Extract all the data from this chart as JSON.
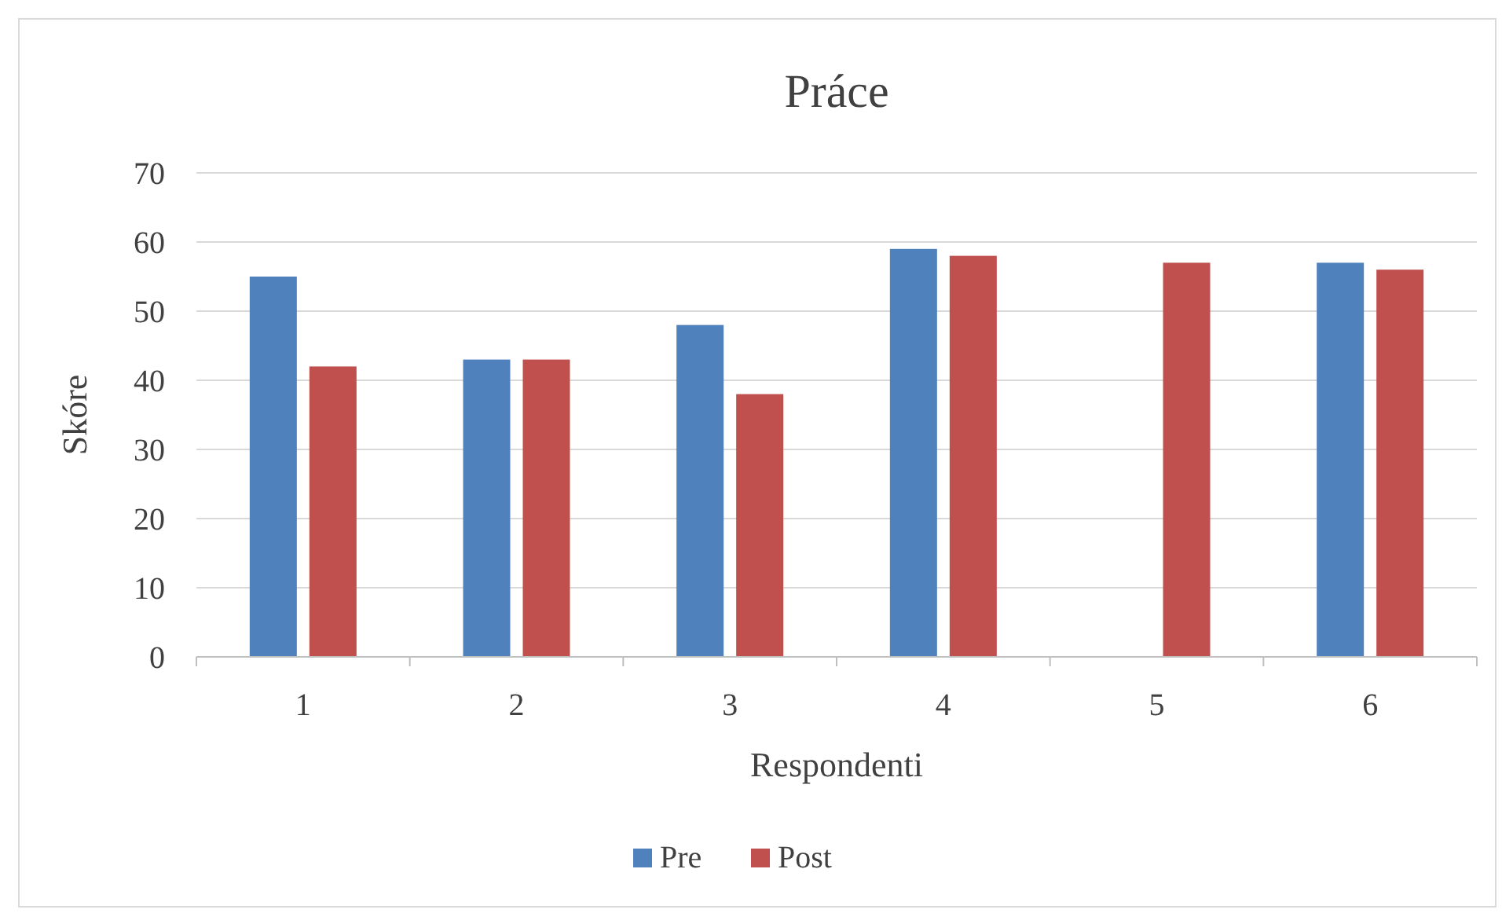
{
  "chart_data": {
    "type": "bar",
    "title": "Práce",
    "xlabel": "Respondenti",
    "ylabel": "Skóre",
    "categories": [
      "1",
      "2",
      "3",
      "4",
      "5",
      "6"
    ],
    "series": [
      {
        "name": "Pre",
        "color": "#4f81bd",
        "values": [
          55,
          43,
          48,
          59,
          null,
          57
        ]
      },
      {
        "name": "Post",
        "color": "#c0504d",
        "values": [
          42,
          43,
          38,
          58,
          57,
          56
        ]
      }
    ],
    "ylim": [
      0,
      70
    ],
    "yticks": [
      0,
      10,
      20,
      30,
      40,
      50,
      60,
      70
    ],
    "grid": "y",
    "legend": "bottom"
  }
}
